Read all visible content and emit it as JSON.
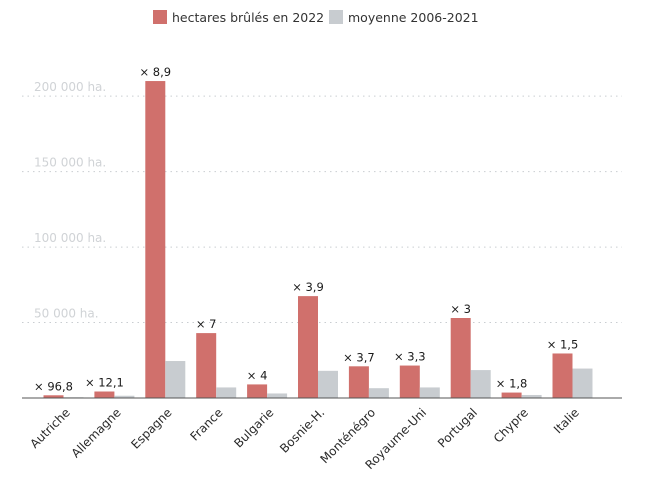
{
  "chart_data": {
    "type": "bar",
    "categories": [
      "Autriche",
      "Allemagne",
      "Espagne",
      "France",
      "Bulgarie",
      "Bosnie-H.",
      "Monténégro",
      "Royaume-Uni",
      "Portugal",
      "Chypre",
      "Italie"
    ],
    "series": [
      {
        "name": "hectares brûlés en 2022",
        "color": "#d0706c",
        "values": [
          1800,
          4300,
          210000,
          43000,
          9000,
          67500,
          21000,
          21500,
          53000,
          3600,
          29500
        ],
        "data_labels": [
          "× 96,8",
          "× 12,1",
          "× 8,9",
          "× 7",
          "× 4",
          "× 3,9",
          "× 3,7",
          "× 3,3",
          "× 3",
          "× 1,8",
          "× 1,5"
        ]
      },
      {
        "name": "moyenne 2006-2021",
        "color": "#c8ccd0",
        "values": [
          500,
          1500,
          24500,
          7000,
          3000,
          18000,
          6500,
          7000,
          18500,
          2000,
          19500
        ]
      }
    ],
    "y_ticks": [
      {
        "value": 50000,
        "label": "50 000 ha."
      },
      {
        "value": 100000,
        "label": "100 000 ha."
      },
      {
        "value": 150000,
        "label": "150 000 ha."
      },
      {
        "value": 200000,
        "label": "200 000 ha."
      }
    ],
    "ylim": [
      0,
      215000
    ],
    "grid": true,
    "legend_position": "top-center",
    "xlabel": "",
    "ylabel": ""
  }
}
